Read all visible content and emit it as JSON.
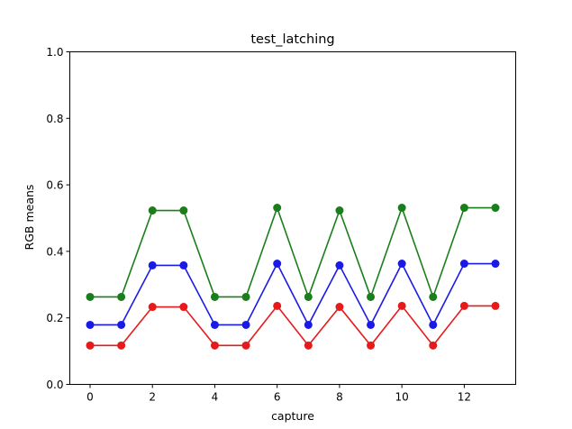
{
  "chart_data": {
    "type": "line",
    "title": "test_latching",
    "xlabel": "capture",
    "ylabel": "RGB means",
    "xlim": [
      -0.65,
      13.65
    ],
    "ylim": [
      0.0,
      1.0
    ],
    "xticks": [
      0,
      2,
      4,
      6,
      8,
      10,
      12
    ],
    "yticks": [
      0.0,
      0.2,
      0.4,
      0.6,
      0.8,
      1.0
    ],
    "ytick_labels": [
      "0.0",
      "0.2",
      "0.4",
      "0.6",
      "0.8",
      "1.0"
    ],
    "grid": false,
    "marker": "circle",
    "x": [
      0,
      1,
      2,
      3,
      4,
      5,
      6,
      7,
      8,
      9,
      10,
      11,
      12,
      13
    ],
    "series": [
      {
        "color": "#1a7f1a",
        "values": [
          0.263,
          0.263,
          0.523,
          0.523,
          0.263,
          0.263,
          0.531,
          0.263,
          0.523,
          0.263,
          0.531,
          0.263,
          0.531,
          0.531
        ]
      },
      {
        "color": "#1a1ae6",
        "values": [
          0.179,
          0.179,
          0.358,
          0.358,
          0.179,
          0.179,
          0.363,
          0.179,
          0.358,
          0.179,
          0.363,
          0.179,
          0.363,
          0.363
        ]
      },
      {
        "color": "#e61a1a",
        "values": [
          0.117,
          0.117,
          0.233,
          0.233,
          0.117,
          0.117,
          0.236,
          0.117,
          0.233,
          0.117,
          0.236,
          0.117,
          0.236,
          0.236
        ]
      }
    ]
  }
}
